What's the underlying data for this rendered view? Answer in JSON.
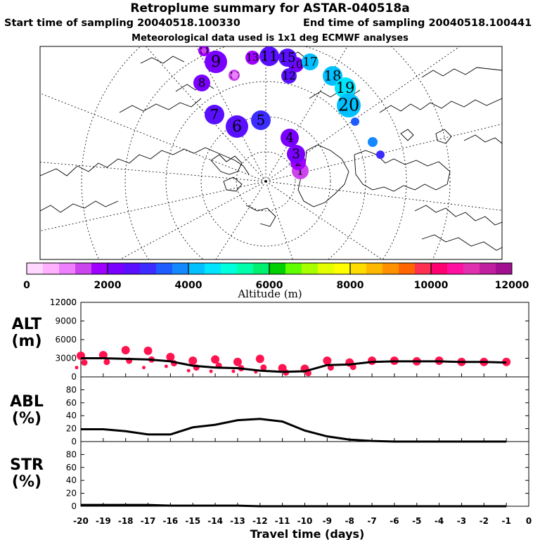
{
  "header": {
    "title": "Retroplume summary for ASTAR-040518a",
    "start": "Start time of sampling 20040518.100330",
    "end": "End time of sampling 20040518.100441",
    "met": "Meteorological data used is 1x1 deg ECMWF analyses"
  },
  "colorbar": {
    "label": "Altitude (m)",
    "ticks": [
      "0",
      "2000",
      "4000",
      "6000",
      "8000",
      "10000",
      "12000"
    ],
    "colors": [
      "#ffd8ff",
      "#ffb0ff",
      "#ee80ff",
      "#cc44ee",
      "#9f00ff",
      "#7a00ff",
      "#5a10ff",
      "#3c2cff",
      "#1e5cff",
      "#1488ff",
      "#00c0ff",
      "#00e4ff",
      "#00ffdd",
      "#00ffaa",
      "#00f070",
      "#00d000",
      "#60ff00",
      "#a8ff00",
      "#e4ff00",
      "#ffff00",
      "#ffdc00",
      "#ffb800",
      "#ff9000",
      "#ff6600",
      "#ff3050",
      "#ff0070",
      "#ff10a0",
      "#e030b0",
      "#c020a0",
      "#a01090"
    ]
  },
  "map": {
    "points": [
      {
        "label": "1",
        "value": 1500,
        "size": 12
      },
      {
        "label": "2",
        "value": 1600,
        "size": 11
      },
      {
        "label": "3",
        "value": 2000,
        "size": 13
      },
      {
        "label": "4",
        "value": 2300,
        "size": 13
      },
      {
        "label": "5",
        "value": 2800,
        "size": 14
      },
      {
        "label": "6",
        "value": 2500,
        "size": 16
      },
      {
        "label": "7",
        "value": 2700,
        "size": 14
      },
      {
        "label": "8",
        "value": 2200,
        "size": 12
      },
      {
        "label": "9",
        "value": 2100,
        "size": 16
      },
      {
        "label": "10",
        "value": 2300,
        "size": 11
      },
      {
        "label": "11",
        "value": 2400,
        "size": 14
      },
      {
        "label": "12",
        "value": 2600,
        "size": 11
      },
      {
        "label": "13",
        "value": 1800,
        "size": 10
      },
      {
        "label": "14",
        "value": 1600,
        "size": 8
      },
      {
        "label": "15",
        "value": 2500,
        "size": 13
      },
      {
        "label": "16",
        "value": 1500,
        "size": 8
      },
      {
        "label": "17",
        "value": 4000,
        "size": 12
      },
      {
        "label": "18",
        "value": 4300,
        "size": 14
      },
      {
        "label": "19",
        "value": 4400,
        "size": 15
      },
      {
        "label": "20",
        "value": 4200,
        "size": 17
      }
    ]
  },
  "chart_data": [
    {
      "type": "scatter",
      "id": "alt",
      "ylabel": "ALT\n(m)",
      "ylim": [
        0,
        12000
      ],
      "yticks": [
        "0",
        "3000",
        "6000",
        "9000",
        "12000"
      ],
      "xlim": [
        -20,
        0
      ],
      "x": [
        -20,
        -19,
        -18,
        -17,
        -16,
        -15,
        -14,
        -13,
        -12,
        -11,
        -10,
        -9,
        -8,
        -7,
        -6,
        -5,
        -4,
        -3,
        -2,
        -1
      ],
      "mean": [
        3000,
        3000,
        2900,
        2800,
        2500,
        1800,
        1500,
        1400,
        1000,
        800,
        900,
        1900,
        2000,
        2400,
        2500,
        2500,
        2500,
        2400,
        2400,
        2300
      ],
      "cloud": [
        [
          3400,
          2300,
          1500
        ],
        [
          3500,
          2400
        ],
        [
          4300,
          2600
        ],
        [
          4200,
          2800,
          1500
        ],
        [
          3200,
          2200,
          1700
        ],
        [
          2600,
          1500,
          1000
        ],
        [
          2800,
          1800,
          900
        ],
        [
          2400,
          1400,
          900
        ],
        [
          2900,
          1500,
          800
        ],
        [
          1400,
          700
        ],
        [
          1300,
          600
        ],
        [
          2600,
          1500
        ],
        [
          2300,
          1600
        ],
        [
          2600
        ],
        [
          2600
        ],
        [
          2500
        ],
        [
          2600
        ],
        [
          2400
        ],
        [
          2400
        ],
        [
          2400
        ]
      ]
    },
    {
      "type": "line",
      "id": "abl",
      "ylabel": "ABL\n(%)",
      "ylim": [
        0,
        100
      ],
      "yticks": [
        "0",
        "20",
        "40",
        "60",
        "80"
      ],
      "x": [
        -20,
        -19,
        -18,
        -17,
        -16,
        -15,
        -14,
        -13,
        -12,
        -11,
        -10,
        -9,
        -8,
        -7,
        -6,
        -5,
        -4,
        -3,
        -2,
        -1
      ],
      "values": [
        19,
        19,
        16,
        11,
        11,
        22,
        26,
        33,
        35,
        31,
        17,
        8,
        3,
        1,
        0,
        0,
        0,
        0,
        0,
        0
      ]
    },
    {
      "type": "line",
      "id": "str",
      "ylabel": "STR\n(%)",
      "ylim": [
        0,
        100
      ],
      "yticks": [
        "0",
        "20",
        "40",
        "60",
        "80"
      ],
      "xlabel": "Travel time (days)",
      "xticks": [
        "-20",
        "-19",
        "-18",
        "-17",
        "-16",
        "-15",
        "-14",
        "-13",
        "-12",
        "-11",
        "-10",
        "-9",
        "-8",
        "-7",
        "-6",
        "-5",
        "-4",
        "-3",
        "-2",
        "-1",
        "0"
      ],
      "x": [
        -20,
        -19,
        -18,
        -17,
        -16,
        -15,
        -14,
        -13,
        -12,
        -11,
        -10,
        -9,
        -8,
        -7,
        -6,
        -5,
        -4,
        -3,
        -2,
        -1
      ],
      "values": [
        2,
        2,
        2,
        2,
        1,
        1,
        1,
        1,
        0,
        0,
        0,
        0,
        0,
        0,
        0,
        0,
        0,
        0,
        0,
        0
      ]
    }
  ]
}
